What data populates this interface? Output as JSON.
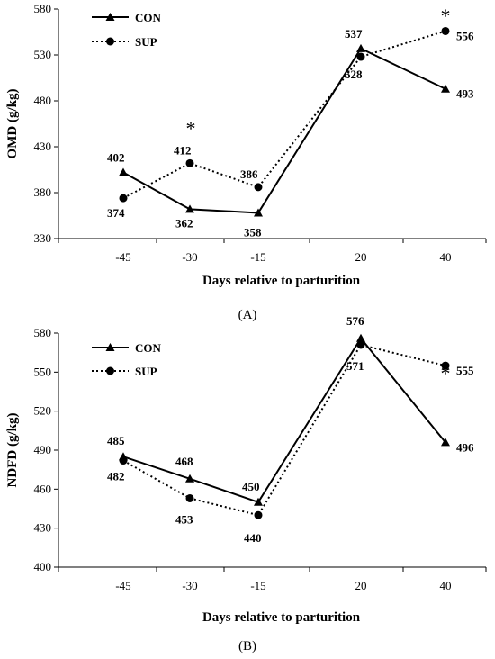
{
  "chart_data": [
    {
      "type": "line",
      "panel_label": "(A)",
      "categories": [
        "-45",
        "-30",
        "-15",
        "20",
        "40"
      ],
      "xlabel": "Days relative to parturition",
      "ylabel": "OMD (g/kg)",
      "ylim": [
        330,
        580
      ],
      "yticks": [
        330,
        380,
        430,
        480,
        530,
        580
      ],
      "legend_position": "top-left",
      "series": [
        {
          "name": "CON",
          "values": [
            402,
            362,
            358,
            537,
            493
          ],
          "labels": [
            "402",
            "362",
            "358",
            "537",
            "493"
          ],
          "marker": "triangle",
          "line": "solid"
        },
        {
          "name": "SUP",
          "values": [
            374,
            412,
            386,
            528,
            556
          ],
          "labels": [
            "374",
            "412",
            "386",
            "528",
            "556"
          ],
          "marker": "circle",
          "line": "dotted"
        }
      ],
      "significance": {
        "symbol": "*",
        "categories": [
          "-30",
          "40"
        ]
      }
    },
    {
      "type": "line",
      "panel_label": "(B)",
      "categories": [
        "-45",
        "-30",
        "-15",
        "20",
        "40"
      ],
      "xlabel": "Days relative to parturition",
      "ylabel": "NDFD (g/kg)",
      "ylim": [
        400,
        580
      ],
      "yticks": [
        400,
        430,
        460,
        490,
        520,
        550,
        580
      ],
      "legend_position": "top-left",
      "series": [
        {
          "name": "CON",
          "values": [
            485,
            468,
            450,
            576,
            496
          ],
          "labels": [
            "485",
            "468",
            "450",
            "576",
            "496"
          ],
          "marker": "triangle",
          "line": "solid"
        },
        {
          "name": "SUP",
          "values": [
            482,
            453,
            440,
            571,
            555
          ],
          "labels": [
            "482",
            "453",
            "440",
            "571",
            "555"
          ],
          "marker": "circle",
          "line": "dotted"
        }
      ],
      "significance": {
        "symbol": "*",
        "categories": [
          "40"
        ]
      }
    }
  ]
}
